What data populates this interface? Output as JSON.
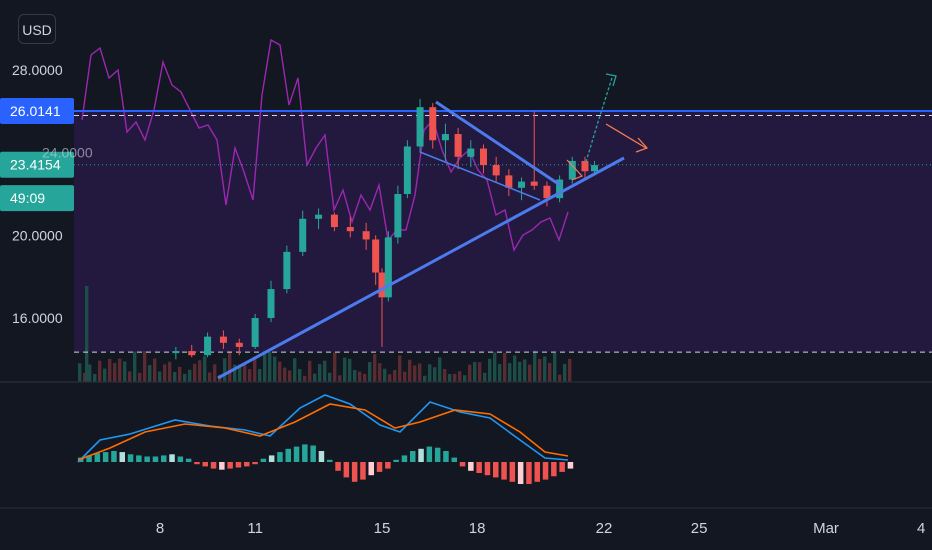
{
  "currency_label": "USD",
  "chart_data": {
    "type": "candlestick",
    "y_ticks": [
      "28.0000",
      "20.0000",
      "16.0000"
    ],
    "price_tags": [
      {
        "label": "26.0141",
        "value": 26.0141,
        "color": "#2962ff"
      },
      {
        "label": "23.4154",
        "value": 23.4154,
        "color": "#26a69a"
      },
      {
        "label": "49:09",
        "value": 21.8,
        "color": "#26a69a"
      }
    ],
    "hidden_tick": "24.0000",
    "x_ticks": [
      "8",
      "11",
      "15",
      "18",
      "22",
      "25",
      "Mar",
      "4"
    ],
    "x_tick_days": [
      8,
      11,
      15,
      18,
      22,
      25,
      29,
      32
    ],
    "x_range": [
      5.3,
      32
    ],
    "y_range": [
      12.6,
      29.6
    ],
    "levels": {
      "resistance_solid": 26.0141,
      "resistance_dashed": 25.8,
      "support_dashed": 14.35,
      "last_price": 23.4154
    },
    "candles": [
      {
        "day": 8.5,
        "o": 14.3,
        "h": 14.6,
        "l": 14.0,
        "c": 14.4
      },
      {
        "day": 9.0,
        "o": 14.4,
        "h": 14.7,
        "l": 14.1,
        "c": 14.2
      },
      {
        "day": 9.5,
        "o": 14.2,
        "h": 15.3,
        "l": 14.1,
        "c": 15.1
      },
      {
        "day": 10.0,
        "o": 15.1,
        "h": 15.4,
        "l": 14.5,
        "c": 14.8
      },
      {
        "day": 10.5,
        "o": 14.8,
        "h": 15.0,
        "l": 14.2,
        "c": 14.6
      },
      {
        "day": 11.0,
        "o": 14.6,
        "h": 16.2,
        "l": 14.5,
        "c": 16.0
      },
      {
        "day": 11.5,
        "o": 16.0,
        "h": 17.8,
        "l": 15.8,
        "c": 17.4
      },
      {
        "day": 12.0,
        "o": 17.4,
        "h": 19.5,
        "l": 17.2,
        "c": 19.2
      },
      {
        "day": 12.5,
        "o": 19.2,
        "h": 21.2,
        "l": 19.0,
        "c": 20.8
      },
      {
        "day": 13.0,
        "o": 20.8,
        "h": 21.3,
        "l": 20.3,
        "c": 21.0
      },
      {
        "day": 13.5,
        "o": 21.0,
        "h": 21.1,
        "l": 20.2,
        "c": 20.4
      },
      {
        "day": 14.0,
        "o": 20.4,
        "h": 20.9,
        "l": 19.9,
        "c": 20.2
      },
      {
        "day": 14.5,
        "o": 20.2,
        "h": 20.6,
        "l": 19.3,
        "c": 19.8
      },
      {
        "day": 14.8,
        "o": 19.8,
        "h": 20.0,
        "l": 17.6,
        "c": 18.2
      },
      {
        "day": 15.0,
        "o": 18.2,
        "h": 18.4,
        "l": 14.6,
        "c": 17.0
      },
      {
        "day": 15.2,
        "o": 17.0,
        "h": 20.2,
        "l": 16.8,
        "c": 19.9
      },
      {
        "day": 15.5,
        "o": 19.9,
        "h": 22.4,
        "l": 19.6,
        "c": 22.0
      },
      {
        "day": 15.8,
        "o": 22.0,
        "h": 24.6,
        "l": 21.8,
        "c": 24.3
      },
      {
        "day": 16.2,
        "o": 24.3,
        "h": 26.6,
        "l": 24.0,
        "c": 26.2
      },
      {
        "day": 16.6,
        "o": 26.2,
        "h": 26.4,
        "l": 24.2,
        "c": 24.6
      },
      {
        "day": 17.0,
        "o": 24.6,
        "h": 25.4,
        "l": 23.6,
        "c": 24.9
      },
      {
        "day": 17.4,
        "o": 24.9,
        "h": 25.2,
        "l": 23.2,
        "c": 23.8
      },
      {
        "day": 17.8,
        "o": 23.8,
        "h": 24.6,
        "l": 23.3,
        "c": 24.2
      },
      {
        "day": 18.2,
        "o": 24.2,
        "h": 24.4,
        "l": 23.0,
        "c": 23.4
      },
      {
        "day": 18.6,
        "o": 23.4,
        "h": 23.8,
        "l": 22.6,
        "c": 22.9
      },
      {
        "day": 19.0,
        "o": 22.9,
        "h": 23.2,
        "l": 21.9,
        "c": 22.3
      },
      {
        "day": 19.4,
        "o": 22.3,
        "h": 22.8,
        "l": 21.7,
        "c": 22.6
      },
      {
        "day": 19.8,
        "o": 22.6,
        "h": 26.0,
        "l": 22.2,
        "c": 22.4
      },
      {
        "day": 20.2,
        "o": 22.4,
        "h": 22.6,
        "l": 21.4,
        "c": 21.8
      },
      {
        "day": 20.6,
        "o": 21.8,
        "h": 22.9,
        "l": 21.6,
        "c": 22.7
      },
      {
        "day": 21.0,
        "o": 22.7,
        "h": 23.8,
        "l": 22.5,
        "c": 23.6
      },
      {
        "day": 21.4,
        "o": 23.6,
        "h": 23.8,
        "l": 22.8,
        "c": 23.1
      },
      {
        "day": 21.7,
        "o": 23.1,
        "h": 23.6,
        "l": 22.9,
        "c": 23.4
      }
    ],
    "volume_grey": "#2a2e39",
    "rsi_line_color": "#9c27b0",
    "macd_line_color": "#2196f3",
    "signal_line_color": "#ff6d00"
  }
}
